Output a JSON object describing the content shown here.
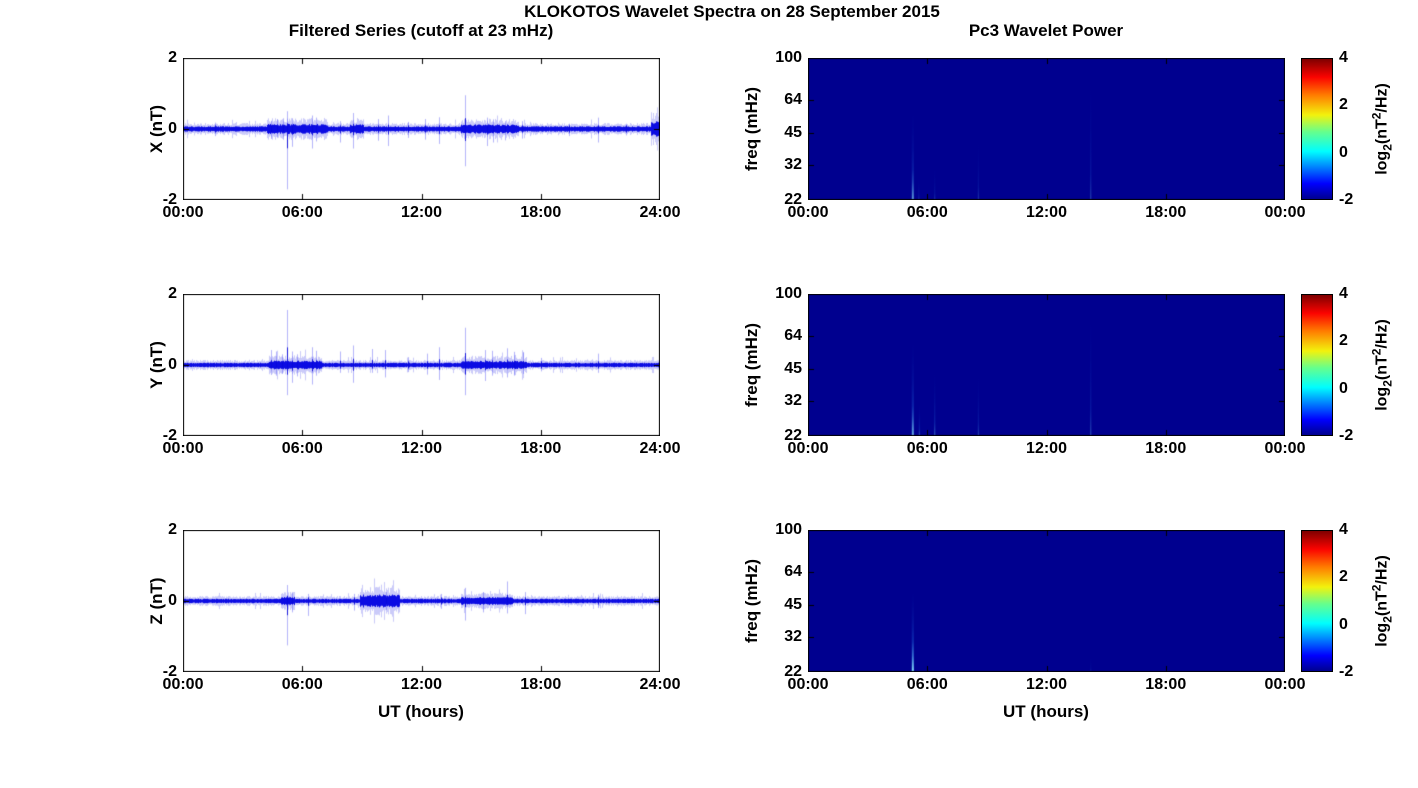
{
  "figure": {
    "title": "KLOKOTOS Wavelet Spectra on 28 September 2015",
    "left_column_title": "Filtered Series (cutoff at 23 mHz)",
    "right_column_title": "Pc3 Wavelet Power",
    "xlabel": "UT (hours)",
    "background": "#FFFFFF",
    "axis_color": "#000000",
    "line_color": "#0000E6"
  },
  "colorbar": {
    "ticks": [
      "4",
      "2",
      "0",
      "-2"
    ],
    "tick_values": [
      4,
      2,
      0,
      -2
    ],
    "label_parts": {
      "prefix": "log",
      "sub": "2",
      "mid": "(nT",
      "sup": "2",
      "suffix": "/Hz)"
    },
    "gradient_stops_bottom_to_top": [
      [
        "0%",
        "#00008F"
      ],
      [
        "11%",
        "#0000FE"
      ],
      [
        "34%",
        "#00FEFE"
      ],
      [
        "48%",
        "#66FF8C"
      ],
      [
        "60%",
        "#F2F20D"
      ],
      [
        "74%",
        "#FF7E00"
      ],
      [
        "87%",
        "#FB0300"
      ],
      [
        "100%",
        "#7F0000"
      ]
    ]
  },
  "chart_data": [
    {
      "id": "series-x",
      "type": "line",
      "ylabel": "X (nT)",
      "ylim": [
        -2,
        2
      ],
      "yticks": [
        2,
        0,
        -2
      ],
      "x_hours": [
        0,
        24
      ],
      "xtick_labels": [
        "00:00",
        "06:00",
        "12:00",
        "18:00",
        "24:00"
      ],
      "noise_base": 0.06,
      "noise_bursts": [
        {
          "t0": 4.2,
          "t1": 7.3,
          "amp": 0.05
        },
        {
          "t0": 8.4,
          "t1": 9.1,
          "amp": 0.04
        },
        {
          "t0": 14.0,
          "t1": 16.9,
          "amp": 0.04
        },
        {
          "t0": 23.55,
          "t1": 24.0,
          "amp": 0.11
        }
      ],
      "spikes": [
        {
          "t": 1.6,
          "up": 0.18,
          "down": -0.2
        },
        {
          "t": 4.45,
          "up": 0.22,
          "down": -0.28
        },
        {
          "t": 4.75,
          "up": 0.28,
          "down": -0.22
        },
        {
          "t": 5.05,
          "up": 0.3,
          "down": -0.3
        },
        {
          "t": 5.25,
          "up": 0.5,
          "down": -1.7
        },
        {
          "t": 5.5,
          "up": 0.3,
          "down": -0.5
        },
        {
          "t": 6.5,
          "up": 0.38,
          "down": -0.55
        },
        {
          "t": 6.7,
          "up": 0.32,
          "down": -0.35
        },
        {
          "t": 7.9,
          "up": 0.22,
          "down": -0.38
        },
        {
          "t": 8.55,
          "up": 0.45,
          "down": -0.55
        },
        {
          "t": 9.8,
          "up": 0.28,
          "down": -0.33
        },
        {
          "t": 10.3,
          "up": 0.38,
          "down": -0.48
        },
        {
          "t": 11.3,
          "up": 0.2,
          "down": -0.25
        },
        {
          "t": 12.2,
          "up": 0.28,
          "down": -0.3
        },
        {
          "t": 12.9,
          "up": 0.33,
          "down": -0.42
        },
        {
          "t": 14.2,
          "up": 0.95,
          "down": -1.05
        },
        {
          "t": 15.3,
          "up": 0.32,
          "down": -0.48
        },
        {
          "t": 15.6,
          "up": 0.27,
          "down": -0.38
        },
        {
          "t": 16.2,
          "up": 0.22,
          "down": -0.32
        },
        {
          "t": 17.05,
          "up": 0.22,
          "down": -0.27
        },
        {
          "t": 19.4,
          "up": 0.15,
          "down": -0.2
        },
        {
          "t": 20.9,
          "up": 0.32,
          "down": -0.38
        },
        {
          "t": 22.3,
          "up": 0.15,
          "down": -0.18
        }
      ]
    },
    {
      "id": "series-y",
      "type": "line",
      "ylabel": "Y (nT)",
      "ylim": [
        -2,
        2
      ],
      "yticks": [
        2,
        0,
        -2
      ],
      "x_hours": [
        0,
        24
      ],
      "xtick_labels": [
        "00:00",
        "06:00",
        "12:00",
        "18:00",
        "24:00"
      ],
      "noise_base": 0.05,
      "noise_bursts": [
        {
          "t0": 4.3,
          "t1": 7.0,
          "amp": 0.045
        },
        {
          "t0": 14.0,
          "t1": 17.3,
          "amp": 0.04
        }
      ],
      "spikes": [
        {
          "t": 4.45,
          "up": 0.42,
          "down": -0.28
        },
        {
          "t": 4.7,
          "up": 0.38,
          "down": -0.3
        },
        {
          "t": 5.0,
          "up": 0.3,
          "down": -0.25
        },
        {
          "t": 5.25,
          "up": 1.55,
          "down": -0.85
        },
        {
          "t": 5.5,
          "up": 0.38,
          "down": -0.5
        },
        {
          "t": 5.75,
          "up": 0.3,
          "down": -0.32
        },
        {
          "t": 6.5,
          "up": 0.5,
          "down": -0.55
        },
        {
          "t": 6.7,
          "up": 0.4,
          "down": -0.3
        },
        {
          "t": 7.9,
          "up": 0.38,
          "down": -0.22
        },
        {
          "t": 8.55,
          "up": 0.55,
          "down": -0.5
        },
        {
          "t": 9.5,
          "up": 0.45,
          "down": -0.22
        },
        {
          "t": 10.15,
          "up": 0.42,
          "down": -0.35
        },
        {
          "t": 11.3,
          "up": 0.22,
          "down": -0.2
        },
        {
          "t": 12.3,
          "up": 0.32,
          "down": -0.27
        },
        {
          "t": 12.9,
          "up": 0.5,
          "down": -0.42
        },
        {
          "t": 14.2,
          "up": 1.05,
          "down": -0.85
        },
        {
          "t": 15.2,
          "up": 0.42,
          "down": -0.45
        },
        {
          "t": 15.55,
          "up": 0.4,
          "down": -0.3
        },
        {
          "t": 16.3,
          "up": 0.47,
          "down": -0.35
        },
        {
          "t": 16.65,
          "up": 0.37,
          "down": -0.3
        },
        {
          "t": 17.1,
          "up": 0.35,
          "down": -0.25
        },
        {
          "t": 18.0,
          "up": 0.2,
          "down": -0.18
        },
        {
          "t": 20.9,
          "up": 0.32,
          "down": -0.22
        }
      ]
    },
    {
      "id": "series-z",
      "type": "line",
      "ylabel": "Z (nT)",
      "ylim": [
        -2,
        2
      ],
      "yticks": [
        2,
        0,
        -2
      ],
      "x_hours": [
        0,
        24
      ],
      "xtick_labels": [
        "00:00",
        "06:00",
        "12:00",
        "18:00",
        "24:00"
      ],
      "noise_base": 0.05,
      "noise_bursts": [
        {
          "t0": 4.9,
          "t1": 5.6,
          "amp": 0.04
        },
        {
          "t0": 8.9,
          "t1": 10.9,
          "amp": 0.09
        },
        {
          "t0": 14.0,
          "t1": 16.6,
          "amp": 0.035
        }
      ],
      "spikes": [
        {
          "t": 5.25,
          "up": 0.45,
          "down": -1.25
        },
        {
          "t": 5.5,
          "up": 0.22,
          "down": -0.32
        },
        {
          "t": 6.3,
          "up": 0.2,
          "down": -0.42
        },
        {
          "t": 8.6,
          "up": 0.2,
          "down": -0.27
        },
        {
          "t": 10.2,
          "up": 0.25,
          "down": -0.25
        },
        {
          "t": 13.0,
          "up": 0.2,
          "down": -0.22
        },
        {
          "t": 14.2,
          "up": 0.37,
          "down": -0.55
        },
        {
          "t": 15.1,
          "up": 0.25,
          "down": -0.32
        },
        {
          "t": 16.3,
          "up": 0.55,
          "down": -0.35
        },
        {
          "t": 17.2,
          "up": 0.25,
          "down": -0.37
        },
        {
          "t": 20.9,
          "up": 0.18,
          "down": -0.2
        }
      ]
    },
    {
      "id": "wav-x",
      "type": "heatmap",
      "ylabel": "freq (mHz)",
      "yticks": [
        100,
        64,
        45,
        32,
        22
      ],
      "yscale": "log",
      "flim": [
        22,
        100
      ],
      "x_hours": [
        0,
        24
      ],
      "xtick_labels": [
        "00:00",
        "06:00",
        "12:00",
        "18:00",
        "00:00"
      ],
      "clim": [
        -2,
        4
      ],
      "background_value": -2,
      "background_color": "#00008F",
      "streaks": [
        {
          "t": 5.25,
          "fmax": 64,
          "peak": 0.5
        },
        {
          "t": 5.55,
          "fmax": 30,
          "peak": 0.18
        },
        {
          "t": 6.35,
          "fmax": 34,
          "peak": 0.2
        },
        {
          "t": 8.55,
          "fmax": 48,
          "peak": 0.22
        },
        {
          "t": 14.2,
          "fmax": 100,
          "peak": 0.28
        }
      ]
    },
    {
      "id": "wav-y",
      "type": "heatmap",
      "ylabel": "freq (mHz)",
      "yticks": [
        100,
        64,
        45,
        32,
        22
      ],
      "yscale": "log",
      "flim": [
        22,
        100
      ],
      "x_hours": [
        0,
        24
      ],
      "xtick_labels": [
        "00:00",
        "06:00",
        "12:00",
        "18:00",
        "00:00"
      ],
      "clim": [
        -2,
        4
      ],
      "background_value": -2,
      "background_color": "#00008F",
      "streaks": [
        {
          "t": 5.25,
          "fmax": 68,
          "peak": 0.6
        },
        {
          "t": 5.58,
          "fmax": 33,
          "peak": 0.35
        },
        {
          "t": 6.35,
          "fmax": 49,
          "peak": 0.4
        },
        {
          "t": 8.55,
          "fmax": 49,
          "peak": 0.28
        },
        {
          "t": 14.2,
          "fmax": 100,
          "peak": 0.32
        }
      ]
    },
    {
      "id": "wav-z",
      "type": "heatmap",
      "ylabel": "freq (mHz)",
      "yticks": [
        100,
        64,
        45,
        32,
        22
      ],
      "yscale": "log",
      "flim": [
        22,
        100
      ],
      "x_hours": [
        0,
        24
      ],
      "xtick_labels": [
        "00:00",
        "06:00",
        "12:00",
        "18:00",
        "00:00"
      ],
      "clim": [
        -2,
        4
      ],
      "background_value": -2,
      "background_color": "#00008F",
      "streaks": [
        {
          "t": 5.25,
          "fmax": 57,
          "peak": 0.85
        },
        {
          "t": 14.2,
          "fmax": 28,
          "peak": 0.1
        }
      ]
    }
  ]
}
